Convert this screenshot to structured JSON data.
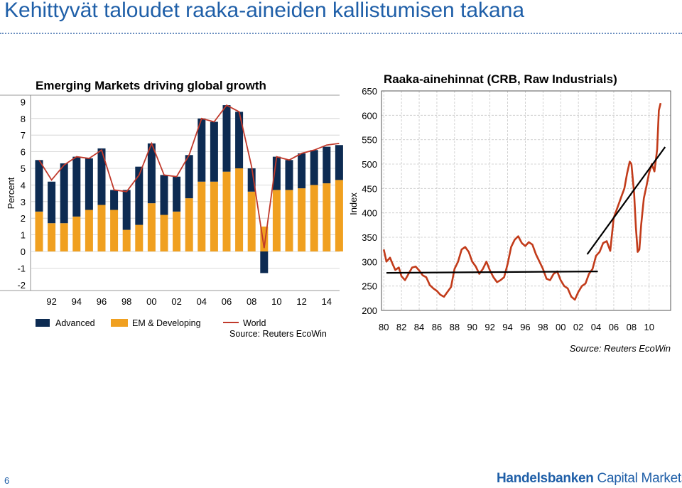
{
  "slide": {
    "title": "Kehittyvät taloudet raaka-aineiden kallistumisen takana",
    "page_number": "6",
    "logo_bold": "Handelsbanken",
    "logo_light": " Capital Markets"
  },
  "chart_data": [
    {
      "type": "bar",
      "title": "Emerging Markets driving global growth",
      "ylabel": "Percent",
      "ylim": [
        -2,
        9
      ],
      "yticks": [
        "9",
        "8",
        "7",
        "6",
        "5",
        "4",
        "3",
        "2",
        "1",
        "0",
        "-1",
        "-2"
      ],
      "xticks": [
        "92",
        "94",
        "96",
        "98",
        "00",
        "02",
        "04",
        "06",
        "08",
        "10",
        "12",
        "14"
      ],
      "categories": [
        1991,
        1992,
        1993,
        1994,
        1995,
        1996,
        1997,
        1998,
        1999,
        2000,
        2001,
        2002,
        2003,
        2004,
        2005,
        2006,
        2007,
        2008,
        2009,
        2010,
        2011,
        2012,
        2013,
        2014,
        2015
      ],
      "stacked": true,
      "series": [
        {
          "name": "EM & Developing",
          "color": "#f0a020",
          "values": [
            2.4,
            1.7,
            1.7,
            2.1,
            2.5,
            2.8,
            2.5,
            1.3,
            1.6,
            2.9,
            2.2,
            2.4,
            3.2,
            4.2,
            4.2,
            4.8,
            5.0,
            3.6,
            1.5,
            3.7,
            3.7,
            3.8,
            4.0,
            4.1,
            4.3
          ]
        },
        {
          "name": "Advanced",
          "color": "#0d2b52",
          "values": [
            3.1,
            2.5,
            3.6,
            3.6,
            3.1,
            3.4,
            1.2,
            2.4,
            3.5,
            3.6,
            2.4,
            2.1,
            2.6,
            3.8,
            3.6,
            4.0,
            3.4,
            1.4,
            -1.3,
            2.0,
            1.8,
            2.1,
            2.1,
            2.2,
            2.1
          ]
        },
        {
          "name": "World",
          "color": "#c0392b",
          "type": "line",
          "values": [
            5.5,
            4.3,
            5.2,
            5.7,
            5.6,
            6.1,
            3.7,
            3.6,
            4.6,
            6.5,
            4.6,
            4.5,
            5.8,
            8.0,
            7.8,
            8.8,
            8.4,
            5.1,
            0.2,
            5.7,
            5.5,
            5.9,
            6.1,
            6.4,
            6.5
          ]
        }
      ],
      "legend": [
        "Advanced",
        "EM & Developing",
        "World"
      ],
      "source": "Source: Reuters EcoWin"
    },
    {
      "type": "line",
      "title": "Raaka-ainehinnat (CRB, Raw Industrials)",
      "ylabel": "Index",
      "ylim": [
        200,
        650
      ],
      "yticks": [
        "650",
        "600",
        "550",
        "500",
        "450",
        "400",
        "350",
        "300",
        "250",
        "200"
      ],
      "xticks": [
        "80",
        "82",
        "84",
        "86",
        "88",
        "90",
        "92",
        "94",
        "96",
        "98",
        "00",
        "02",
        "04",
        "06",
        "08",
        "10"
      ],
      "grid": true,
      "series": [
        {
          "name": "CRB Raw Industrials",
          "color": "#c23b1a",
          "x": [
            1980.0,
            1980.3,
            1980.7,
            1981.0,
            1981.3,
            1981.7,
            1982.0,
            1982.4,
            1982.8,
            1983.2,
            1983.6,
            1984.0,
            1984.4,
            1984.8,
            1985.2,
            1985.6,
            1986.0,
            1986.4,
            1986.8,
            1987.2,
            1987.6,
            1988.0,
            1988.4,
            1988.8,
            1989.2,
            1989.6,
            1990.0,
            1990.4,
            1990.8,
            1991.2,
            1991.6,
            1992.0,
            1992.4,
            1992.8,
            1993.2,
            1993.6,
            1994.0,
            1994.4,
            1994.8,
            1995.2,
            1995.6,
            1996.0,
            1996.4,
            1996.8,
            1997.2,
            1997.6,
            1998.0,
            1998.4,
            1998.8,
            1999.2,
            1999.6,
            2000.0,
            2000.4,
            2000.8,
            2001.2,
            2001.6,
            2002.0,
            2002.4,
            2002.8,
            2003.2,
            2003.6,
            2004.0,
            2004.4,
            2004.8,
            2005.2,
            2005.6,
            2006.0,
            2006.3,
            2006.6,
            2006.9,
            2007.2,
            2007.5,
            2007.8,
            2008.0,
            2008.3,
            2008.5,
            2008.7,
            2008.9,
            2009.1,
            2009.4,
            2009.7,
            2010.0,
            2010.3,
            2010.6,
            2010.9,
            2011.1,
            2011.3
          ],
          "y": [
            325,
            300,
            308,
            295,
            283,
            288,
            270,
            262,
            275,
            288,
            290,
            282,
            272,
            268,
            252,
            245,
            240,
            232,
            228,
            238,
            248,
            285,
            300,
            325,
            330,
            320,
            300,
            290,
            275,
            285,
            300,
            282,
            268,
            258,
            262,
            268,
            295,
            330,
            345,
            352,
            338,
            332,
            340,
            335,
            315,
            300,
            285,
            265,
            262,
            275,
            280,
            262,
            250,
            245,
            228,
            222,
            238,
            250,
            255,
            275,
            285,
            312,
            320,
            338,
            342,
            322,
            390,
            405,
            420,
            435,
            450,
            480,
            505,
            500,
            440,
            370,
            320,
            325,
            375,
            430,
            455,
            482,
            500,
            485,
            530,
            610,
            625
          ]
        },
        {
          "name": "trend-1",
          "color": "#000000",
          "x": [
            1980.3,
            2004.2
          ],
          "y": [
            277,
            280
          ]
        },
        {
          "name": "trend-2",
          "color": "#000000",
          "x": [
            2003.0,
            2011.8
          ],
          "y": [
            315,
            535
          ]
        }
      ],
      "source": "Source: Reuters EcoWin"
    }
  ]
}
